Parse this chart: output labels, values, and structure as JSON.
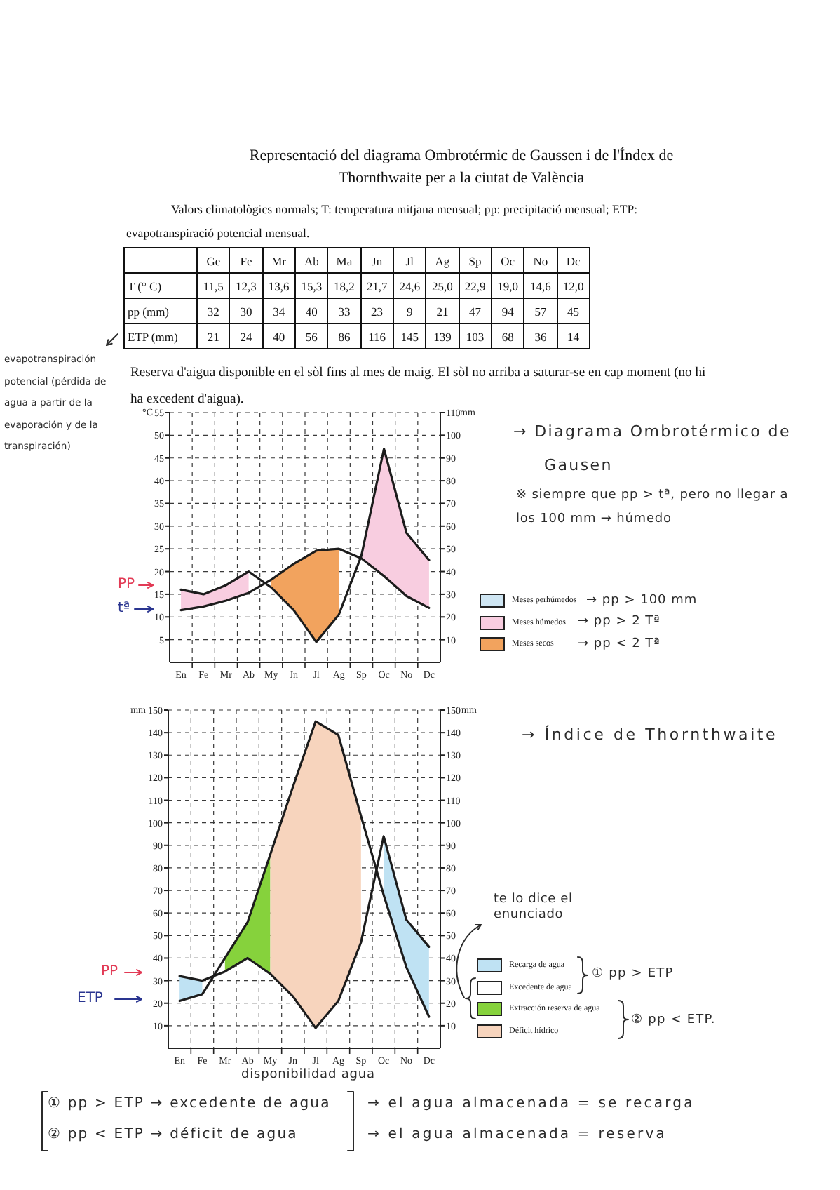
{
  "chart_data": [
    {
      "type": "other",
      "title": "Representació del diagrama Ombrotérmic de Gaussen i de l'Índex de Thornthwaite per a la ciutat de València",
      "subtitle": "Valors climatològics normals; T: temperatura mitjana mensual; pp: precipitació mensual; ETP: evapotranspiració potencial mensual.",
      "categories": [
        "Ge",
        "Fe",
        "Mr",
        "Ab",
        "Ma",
        "Jn",
        "Jl",
        "Ag",
        "Sp",
        "Oc",
        "No",
        "Dc"
      ],
      "series": [
        {
          "name": "T (° C)",
          "values": [
            11.5,
            12.3,
            13.6,
            15.3,
            18.2,
            21.7,
            24.6,
            25.0,
            22.9,
            19.0,
            14.6,
            12.0
          ],
          "value_labels": [
            "11,5",
            "12,3",
            "13,6",
            "15,3",
            "18,2",
            "21,7",
            "24,6",
            "25,0",
            "22,9",
            "19,0",
            "14,6",
            "12,0"
          ]
        },
        {
          "name": "pp (mm)",
          "values": [
            32,
            30,
            34,
            40,
            33,
            23,
            9,
            21,
            47,
            94,
            57,
            45
          ]
        },
        {
          "name": "ETP (mm)",
          "values": [
            21,
            24,
            40,
            56,
            86,
            116,
            145,
            139,
            103,
            68,
            36,
            14
          ]
        }
      ],
      "data_labels": true,
      "annotations": [
        "Reserva d'aigua disponible en el sòl fins al mes de maig. El sòl no arriba a saturar-se en cap moment (no hi ha excedent d'aigua).",
        "evapotranspiración potencial (pérdida de agua a partir de la evaporación y de la transpiración)"
      ]
    },
    {
      "type": "line",
      "categories": [
        "En",
        "Fe",
        "Mr",
        "Ab",
        "My",
        "Jn",
        "Jl",
        "Ag",
        "Sp",
        "Oc",
        "No",
        "Dc"
      ],
      "ylim": [
        0,
        55
      ],
      "yticks": [
        5,
        10,
        15,
        20,
        25,
        30,
        35,
        40,
        45,
        50,
        55
      ],
      "ylabel": "°C",
      "y2lim": [
        0,
        110
      ],
      "y2ticks": [
        10,
        20,
        30,
        40,
        50,
        60,
        70,
        80,
        90,
        100,
        110
      ],
      "y2label": "mm",
      "grid": true,
      "legend": "right",
      "series": [
        {
          "type": "area",
          "name": "Meses perhúmedos",
          "color": "#cfe6f3",
          "values": [
            null,
            null,
            null,
            null,
            null,
            null,
            null,
            null,
            null,
            null,
            null,
            null
          ]
        },
        {
          "type": "area",
          "name": "Meses húmedos",
          "color": "#f8cde0",
          "values": [
            16,
            15,
            17,
            20,
            null,
            null,
            null,
            null,
            23.5,
            47,
            28.5,
            22.5
          ]
        },
        {
          "type": "area",
          "name": "Meses secos",
          "color": "#f2a35e",
          "values": [
            null,
            null,
            null,
            null,
            18.2,
            21.7,
            24.6,
            25.0,
            null,
            null,
            null,
            null
          ]
        },
        {
          "type": "line",
          "color": "#1c1c1c",
          "axis": "y2",
          "values": [
            32,
            30,
            34,
            40,
            33,
            23,
            9,
            21,
            47,
            94,
            57,
            45
          ]
        },
        {
          "type": "line",
          "color": "#1c1c1c",
          "axis": "y",
          "values": [
            11.5,
            12.3,
            13.6,
            15.3,
            18.2,
            21.7,
            24.6,
            25.0,
            22.9,
            19.0,
            14.6,
            12.0
          ]
        }
      ],
      "annotations": [
        "→ Diagrama Ombrotérmico de Gausen",
        "※ siempre que pp > tª, pero no llegar a los 100 mm → húmedo",
        "→ pp > 100 mm",
        "→ pp > 2 Tª",
        "→ pp < 2 Tª",
        "PP",
        "tª"
      ]
    },
    {
      "type": "line",
      "categories": [
        "En",
        "Fe",
        "Mr",
        "Ab",
        "My",
        "Jn",
        "Jl",
        "Ag",
        "Sp",
        "Oc",
        "No",
        "Dc"
      ],
      "ylim": [
        0,
        150
      ],
      "yticks": [
        10,
        20,
        30,
        40,
        50,
        60,
        70,
        80,
        90,
        100,
        110,
        120,
        130,
        140,
        150
      ],
      "ylabel": "mm",
      "y2lim": [
        0,
        150
      ],
      "y2ticks": [
        10,
        20,
        30,
        40,
        50,
        60,
        70,
        80,
        90,
        100,
        110,
        120,
        130,
        140,
        150
      ],
      "y2label": "mm",
      "grid": true,
      "legend": "right",
      "series": [
        {
          "type": "area",
          "name": "Recarga de agua",
          "color": "#bfe2f3",
          "values": [
            32,
            30,
            null,
            null,
            null,
            null,
            null,
            null,
            null,
            94,
            57,
            45
          ]
        },
        {
          "type": "area",
          "name": "Excedente de agua",
          "color": "#ffffff",
          "values": [
            null,
            null,
            null,
            null,
            null,
            null,
            null,
            null,
            null,
            null,
            null,
            null
          ]
        },
        {
          "type": "area",
          "name": "Extracción reserva de agua",
          "color": "#86d23c",
          "values": [
            null,
            null,
            40,
            56,
            86,
            null,
            null,
            null,
            null,
            null,
            null,
            null
          ]
        },
        {
          "type": "area",
          "name": "Déficit hídrico",
          "color": "#f7d4bd",
          "values": [
            null,
            null,
            null,
            null,
            86,
            116,
            145,
            139,
            103,
            null,
            null,
            null
          ]
        },
        {
          "type": "line",
          "color": "#1c1c1c",
          "axis": "y",
          "values": [
            32,
            30,
            34,
            40,
            33,
            23,
            9,
            21,
            47,
            94,
            57,
            45
          ]
        },
        {
          "type": "line",
          "color": "#1c1c1c",
          "axis": "y",
          "values": [
            21,
            24,
            40,
            56,
            86,
            116,
            145,
            139,
            103,
            68,
            36,
            14
          ]
        }
      ],
      "annotations": [
        "→ Índice de Thornthwaite",
        "te lo dice el enunciado",
        "① pp > ETP",
        "② pp < ETP.",
        "disponibilidad agua",
        "① pp > ETP → excedente de agua",
        "→ el agua almacenada = se recarga",
        "② pp < ETP → déficit de agua",
        "→ el agua almacenada = reserva",
        "PP",
        "ETP"
      ]
    }
  ]
}
